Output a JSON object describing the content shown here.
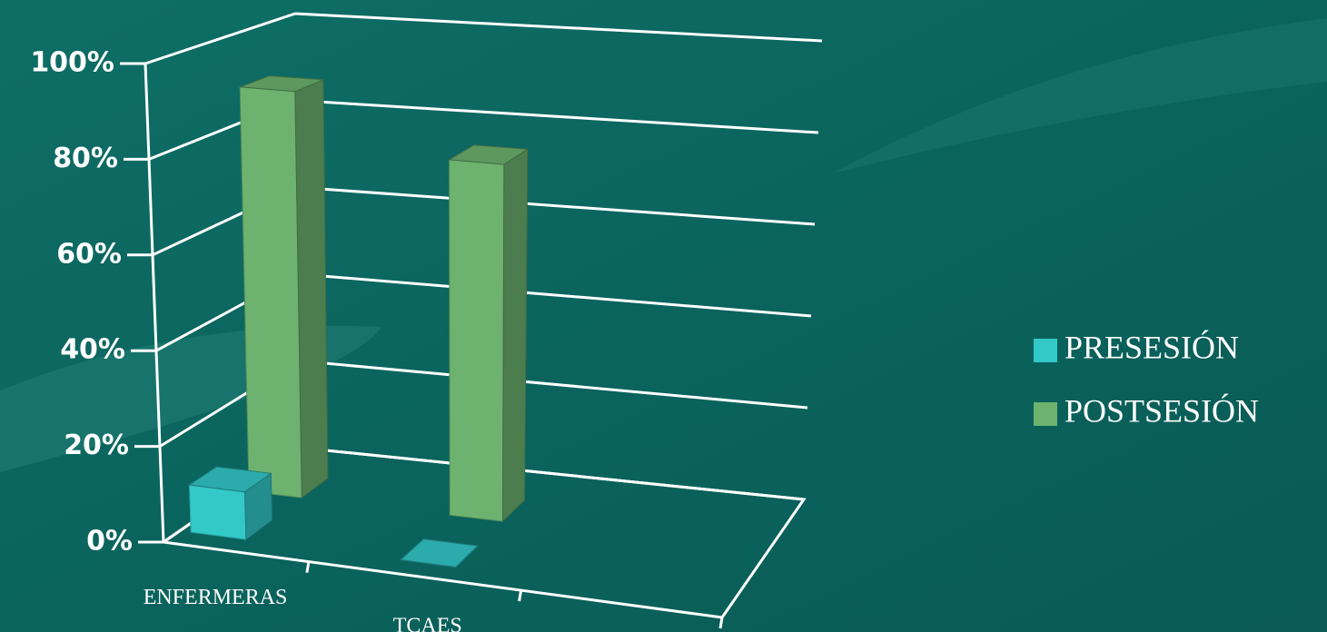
{
  "chart_data": {
    "type": "bar3d",
    "categories": [
      "ENFERMERAS",
      "TCAES"
    ],
    "series": [
      {
        "name": "PRESESIÓN",
        "color": "#33c9c9",
        "values": [
          10,
          0
        ]
      },
      {
        "name": "POSTSESIÓN",
        "color": "#6db36f",
        "values": [
          89,
          77
        ]
      }
    ],
    "ylim": [
      0,
      100
    ],
    "yticks": [
      {
        "value": 0,
        "label": "0%"
      },
      {
        "value": 20,
        "label": "20%"
      },
      {
        "value": 40,
        "label": "40%"
      },
      {
        "value": 60,
        "label": "60%"
      },
      {
        "value": 80,
        "label": "80%"
      },
      {
        "value": 100,
        "label": "100%"
      }
    ],
    "grid": true,
    "legend": "right"
  }
}
